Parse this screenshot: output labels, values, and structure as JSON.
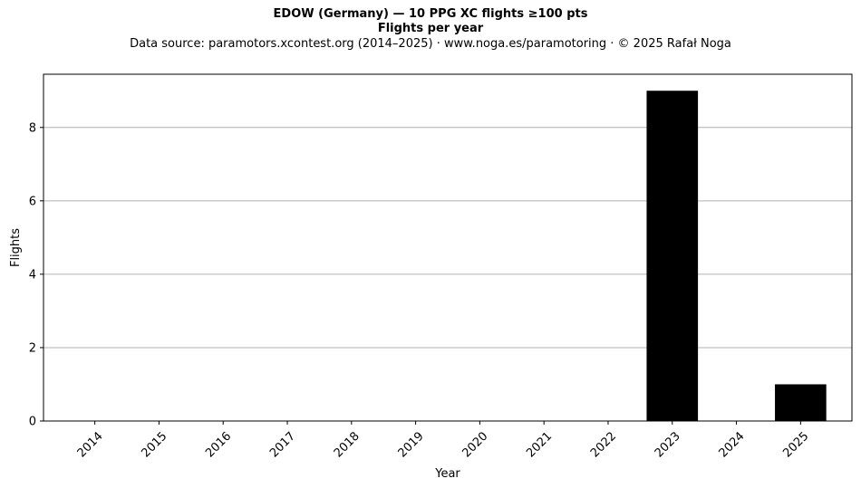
{
  "chart_data": {
    "type": "bar",
    "title": "EDOW (Germany)  —  10 PPG XC flights ≥100 pts",
    "subtitle": "Flights per year",
    "source_note": "Data source: paramotors.xcontest.org (2014–2025)  ·  www.noga.es/paramotoring  ·  © 2025 Rafał Noga",
    "xlabel": "Year",
    "ylabel": "Flights",
    "categories": [
      "2014",
      "2015",
      "2016",
      "2017",
      "2018",
      "2019",
      "2020",
      "2021",
      "2022",
      "2023",
      "2024",
      "2025"
    ],
    "values": [
      0,
      0,
      0,
      0,
      0,
      0,
      0,
      0,
      0,
      9,
      0,
      1
    ],
    "ylim": [
      0,
      9.45
    ],
    "yticks": [
      0,
      2,
      4,
      6,
      8
    ],
    "grid": "y",
    "bar_color": "#000000",
    "grid_color": "#b0b0b0"
  }
}
